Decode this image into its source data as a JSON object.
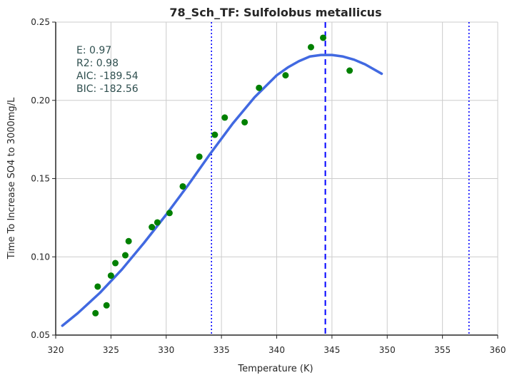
{
  "chart_data": {
    "type": "scatter",
    "title": "78_Sch_TF: Sulfolobus metallicus",
    "xlabel": "Temperature (K)",
    "ylabel": "Time To Increase SO4 to 3000mg/L",
    "xlim": [
      320,
      360
    ],
    "ylim": [
      0.05,
      0.25
    ],
    "xticks": [
      320,
      325,
      330,
      335,
      340,
      345,
      350,
      355,
      360
    ],
    "yticks": [
      0.05,
      0.1,
      0.15,
      0.2,
      0.25
    ],
    "xtick_labels": [
      "320",
      "325",
      "330",
      "335",
      "340",
      "345",
      "350",
      "355",
      "360"
    ],
    "ytick_labels": [
      "0.05",
      "0.10",
      "0.15",
      "0.20",
      "0.25"
    ],
    "grid": true,
    "colors": {
      "points": "#008000",
      "fit": "#4169e1",
      "vlines": "#0000ff",
      "grid": "#cccccc",
      "axis": "#262626"
    },
    "points": [
      {
        "x": 323.6,
        "y": 0.064
      },
      {
        "x": 323.8,
        "y": 0.081
      },
      {
        "x": 324.6,
        "y": 0.069
      },
      {
        "x": 325.0,
        "y": 0.088
      },
      {
        "x": 325.4,
        "y": 0.096
      },
      {
        "x": 326.3,
        "y": 0.101
      },
      {
        "x": 326.6,
        "y": 0.11
      },
      {
        "x": 328.7,
        "y": 0.119
      },
      {
        "x": 329.2,
        "y": 0.122
      },
      {
        "x": 330.3,
        "y": 0.128
      },
      {
        "x": 331.5,
        "y": 0.145
      },
      {
        "x": 333.0,
        "y": 0.164
      },
      {
        "x": 334.4,
        "y": 0.178
      },
      {
        "x": 335.3,
        "y": 0.189
      },
      {
        "x": 337.1,
        "y": 0.186
      },
      {
        "x": 338.4,
        "y": 0.208
      },
      {
        "x": 340.8,
        "y": 0.216
      },
      {
        "x": 343.1,
        "y": 0.234
      },
      {
        "x": 344.2,
        "y": 0.24
      },
      {
        "x": 346.6,
        "y": 0.219
      }
    ],
    "fit_curve": [
      {
        "x": 320.6,
        "y": 0.056
      },
      {
        "x": 322.0,
        "y": 0.064
      },
      {
        "x": 324.0,
        "y": 0.077
      },
      {
        "x": 326.0,
        "y": 0.092
      },
      {
        "x": 328.0,
        "y": 0.109
      },
      {
        "x": 330.0,
        "y": 0.127
      },
      {
        "x": 332.0,
        "y": 0.146
      },
      {
        "x": 334.0,
        "y": 0.166
      },
      {
        "x": 336.0,
        "y": 0.185
      },
      {
        "x": 338.0,
        "y": 0.202
      },
      {
        "x": 340.0,
        "y": 0.216
      },
      {
        "x": 341.0,
        "y": 0.221
      },
      {
        "x": 342.0,
        "y": 0.225
      },
      {
        "x": 343.0,
        "y": 0.228
      },
      {
        "x": 344.0,
        "y": 0.229
      },
      {
        "x": 345.0,
        "y": 0.229
      },
      {
        "x": 346.0,
        "y": 0.228
      },
      {
        "x": 347.0,
        "y": 0.226
      },
      {
        "x": 348.0,
        "y": 0.223
      },
      {
        "x": 349.5,
        "y": 0.217
      }
    ],
    "vertical_lines": [
      {
        "x": 334.1,
        "style": "dotted"
      },
      {
        "x": 344.4,
        "style": "dashed"
      },
      {
        "x": 357.4,
        "style": "dotted"
      }
    ],
    "annotations": {
      "e": "E:  0.97",
      "r2": "R2:  0.98",
      "aic": "AIC: -189.54",
      "bic": "BIC: -182.56"
    }
  }
}
